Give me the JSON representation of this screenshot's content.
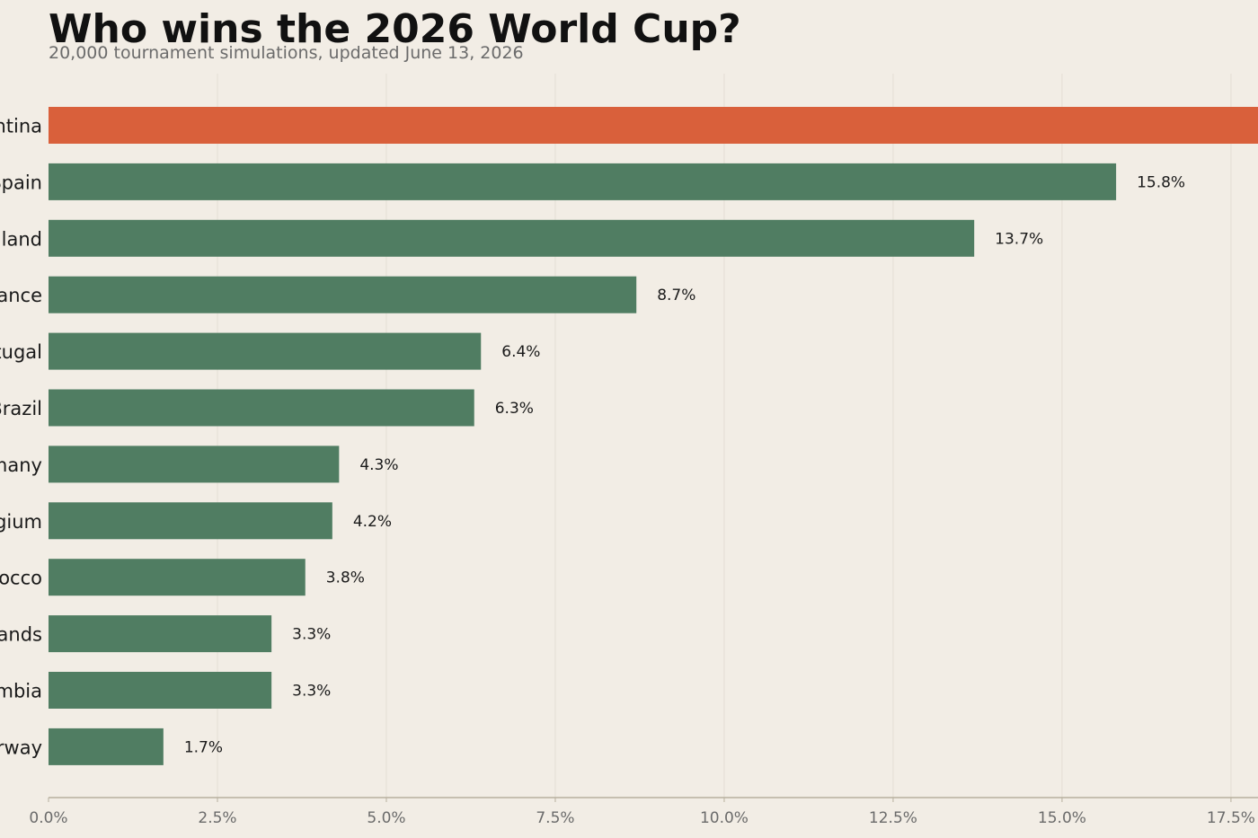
{
  "chart_data": {
    "type": "bar",
    "orientation": "horizontal",
    "title": "Who wins the 2026 World Cup?",
    "subtitle": "20,000 tournament simulations, updated June 13, 2026",
    "categories": [
      "Argentina",
      "Spain",
      "England",
      "France",
      "Portugal",
      "Brazil",
      "Germany",
      "Belgium",
      "Morocco",
      "Netherlands",
      "Colombia",
      "Norway"
    ],
    "values": [
      19.0,
      15.8,
      13.7,
      8.7,
      6.4,
      6.3,
      4.3,
      4.2,
      3.8,
      3.3,
      3.3,
      1.7
    ],
    "value_labels": [
      "",
      "15.8%",
      "13.7%",
      "8.7%",
      "6.4%",
      "6.3%",
      "4.3%",
      "4.2%",
      "3.8%",
      "3.3%",
      "3.3%",
      "1.7%"
    ],
    "xlim": [
      0,
      17.9
    ],
    "xticks": [
      0,
      2.5,
      5,
      7.5,
      10,
      12.5,
      15,
      17.5
    ],
    "xtick_labels": [
      "0.0%",
      "2.5%",
      "5.0%",
      "7.5%",
      "10.0%",
      "12.5%",
      "15.0%",
      "17.5%"
    ],
    "xlabel": "",
    "ylabel": "",
    "grid": "vertical",
    "highlight_category": "Argentina",
    "colors": {
      "bar": "#507d62",
      "highlight": "#d9603b",
      "grid": "#e4ded4",
      "axis": "#b7b09e",
      "background": "#f2ede5"
    }
  }
}
